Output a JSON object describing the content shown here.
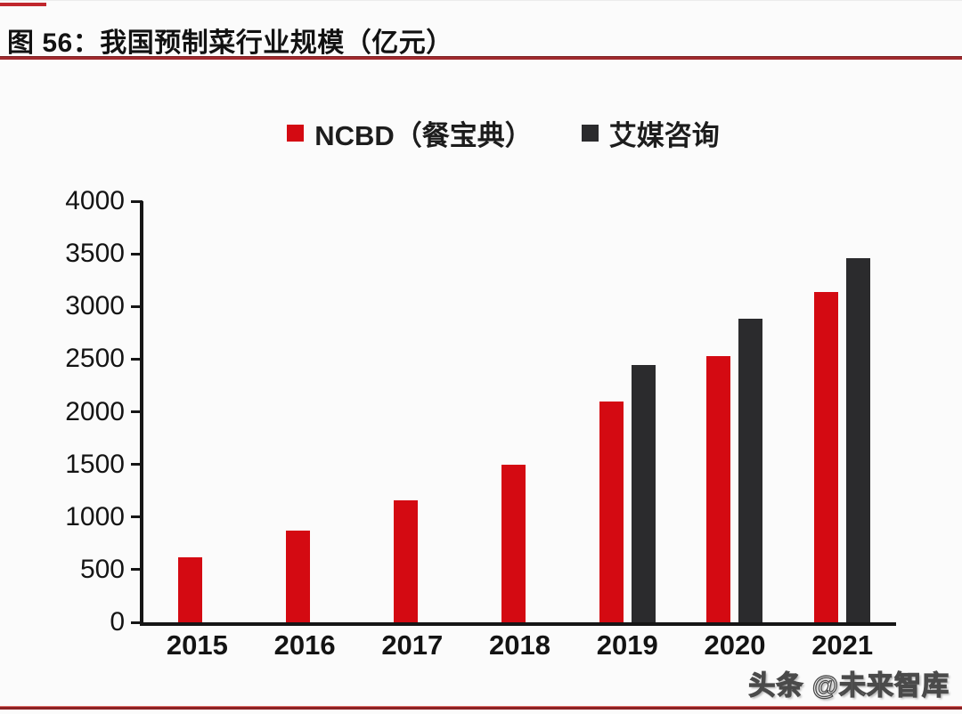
{
  "page": {
    "title": "图 56：我国预制菜行业规模（亿元）",
    "watermark": "头条 @未来智库",
    "accent_red": "#c1272d",
    "title_rule_color": "#a02a2e",
    "bottom_rule_color": "#8c2023",
    "axis_color": "#161616"
  },
  "chart_data": {
    "type": "bar",
    "title": "图 56：我国预制菜行业规模（亿元）",
    "unit": "亿元",
    "categories": [
      "2015",
      "2016",
      "2017",
      "2018",
      "2019",
      "2020",
      "2021"
    ],
    "series": [
      {
        "name": "NCBD（餐宝典）",
        "color": "#d40a12",
        "values": [
          620,
          870,
          1160,
          1500,
          2100,
          2527,
          3137
        ]
      },
      {
        "name": "艾媒咨询",
        "color": "#2b2b2d",
        "values": [
          null,
          null,
          null,
          null,
          2445,
          2888,
          3459
        ]
      }
    ],
    "xlabel": "",
    "ylabel": "",
    "ylim": [
      0,
      4000
    ],
    "y_ticks": [
      0,
      500,
      1000,
      1500,
      2000,
      2500,
      3000,
      3500,
      4000
    ],
    "grid": false,
    "legend_position": "top"
  }
}
